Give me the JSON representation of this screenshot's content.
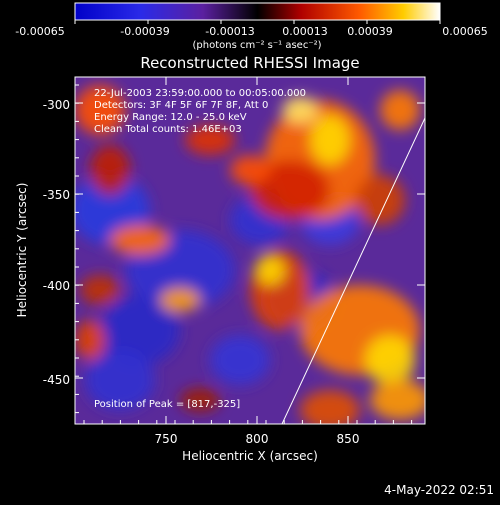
{
  "colorbar": {
    "tick_labels": [
      "-0.00065",
      "-0.00039",
      "-0.00013",
      "0.00013",
      "0.00039",
      "0.00065"
    ],
    "units_label": "(photons cm⁻² s⁻¹ asec⁻²)",
    "value_range": [
      -0.00065,
      0.00065
    ]
  },
  "title": "Reconstructed RHESSI Image",
  "info": {
    "line1": "22-Jul-2003 23:59:00.000 to 00:05:00.000",
    "line2": "Detectors: 3F 4F 5F 6F 7F 8F, Att 0",
    "line3": "Energy Range: 12.0 - 25.0 keV",
    "line4": "Clean     Total counts: 1.46E+03"
  },
  "peak_label": "Position of Peak = [817,-325]",
  "x_axis": {
    "label": "Heliocentric X (arcsec)",
    "ticks": [
      "750",
      "800",
      "850"
    ],
    "range": [
      702,
      893
    ]
  },
  "y_axis": {
    "label": "Heliocentric Y (arcsec)",
    "ticks": [
      "-300",
      "-350",
      "-400",
      "-450"
    ],
    "range": [
      -476,
      -282
    ]
  },
  "timestamp": "4-May-2022 02:51",
  "colors": {
    "background": "#000000",
    "text": "#ffffff",
    "low": "#0000ff",
    "mid": "#800080",
    "high": "#ffff00"
  }
}
